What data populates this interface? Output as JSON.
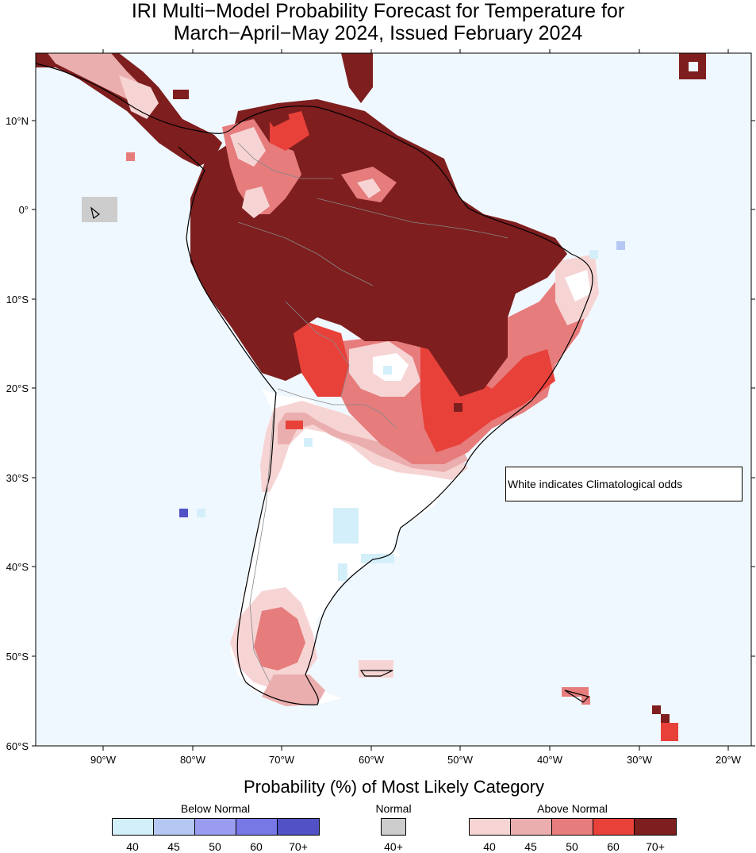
{
  "title": {
    "line1": "IRI Multi−Model Probability Forecast for Temperature for",
    "line2": "March−April−May 2024, Issued February 2024"
  },
  "map": {
    "lat_labels": [
      "10°N",
      "0°",
      "10°S",
      "20°S",
      "30°S",
      "40°S",
      "50°S",
      "60°S"
    ],
    "lon_labels": [
      "90°W",
      "80°W",
      "70°W",
      "60°W",
      "50°W",
      "40°W",
      "30°W",
      "20°W"
    ],
    "note": "White indicates Climatological odds",
    "ocean_color": "#f0f8ff",
    "land_no_signal_color": "#ffffff"
  },
  "legend": {
    "title": "Probability (%) of Most Likely Category",
    "below_normal": {
      "title": "Below Normal",
      "labels": [
        "40",
        "45",
        "50",
        "60",
        "70+"
      ],
      "colors": [
        "#d3effa",
        "#b4c8f3",
        "#9a9cf0",
        "#7777e6",
        "#5252c6"
      ]
    },
    "normal": {
      "title": "Normal",
      "labels": [
        "40+"
      ],
      "colors": [
        "#cdcdcd"
      ]
    },
    "above_normal": {
      "title": "Above Normal",
      "labels": [
        "40",
        "45",
        "50",
        "60",
        "70+"
      ],
      "colors": [
        "#f7d4d4",
        "#ebaeae",
        "#e67c7c",
        "#e8413a",
        "#7e1e1e"
      ]
    }
  }
}
